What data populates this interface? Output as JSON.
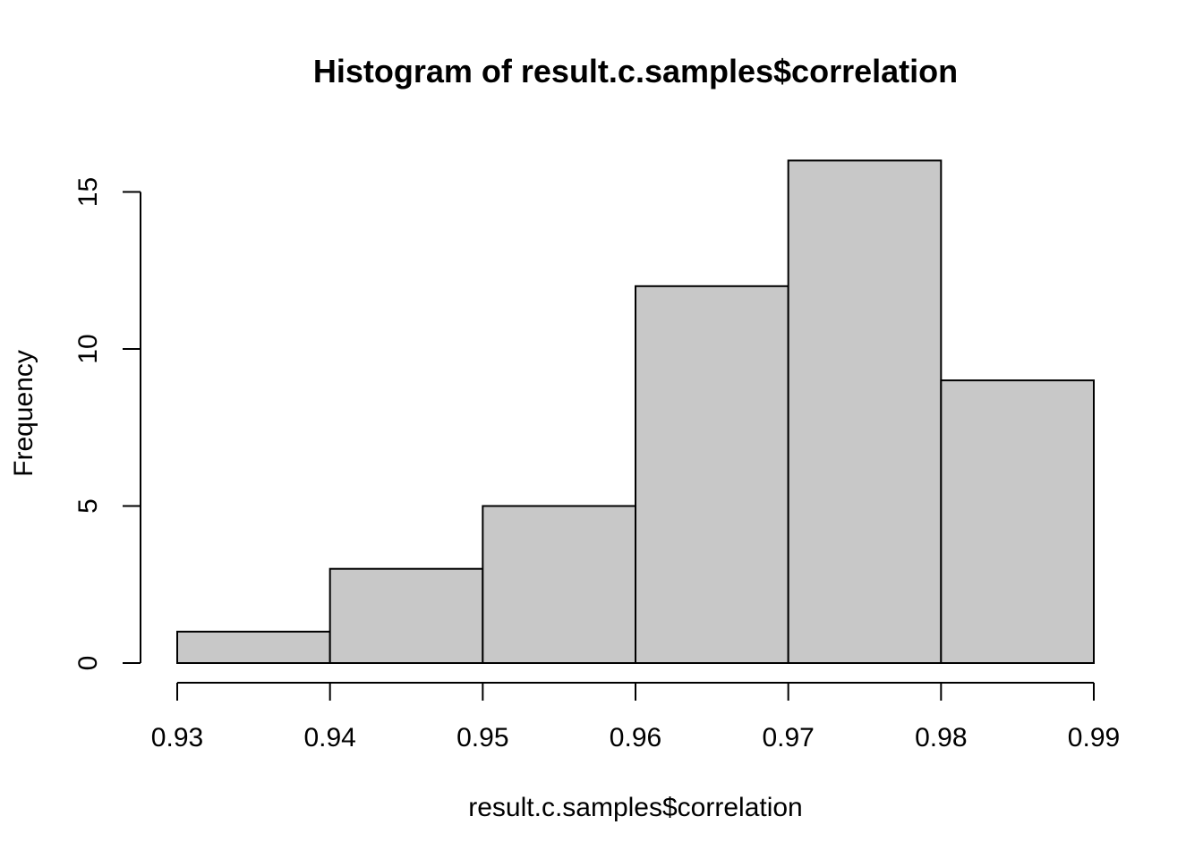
{
  "chart_data": {
    "type": "bar",
    "title": "Histogram of result.c.samples$correlation",
    "xlabel": "result.c.samples$correlation",
    "ylabel": "Frequency",
    "bins": [
      {
        "start": 0.93,
        "end": 0.94,
        "value": 1
      },
      {
        "start": 0.94,
        "end": 0.95,
        "value": 3
      },
      {
        "start": 0.95,
        "end": 0.96,
        "value": 5
      },
      {
        "start": 0.96,
        "end": 0.97,
        "value": 12
      },
      {
        "start": 0.97,
        "end": 0.98,
        "value": 16
      },
      {
        "start": 0.98,
        "end": 0.99,
        "value": 9
      }
    ],
    "x_ticks": [
      "0.93",
      "0.94",
      "0.95",
      "0.96",
      "0.97",
      "0.98",
      "0.99"
    ],
    "y_ticks": [
      "0",
      "5",
      "10",
      "15"
    ],
    "xlim": [
      0.93,
      0.99
    ],
    "ylim": [
      0,
      16
    ],
    "grid": false,
    "bar_fill": "#c8c8c8",
    "bar_stroke": "#000000"
  }
}
